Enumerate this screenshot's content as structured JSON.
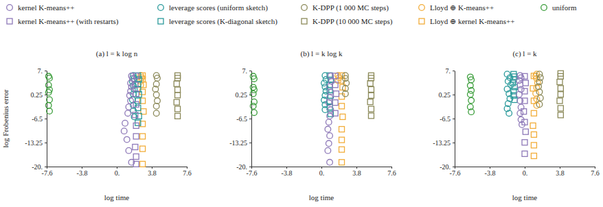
{
  "chart_data": [
    {
      "type": "scatter",
      "title": "(a) l = k log n",
      "x_label": "log time",
      "y_label": "log Frobenius error",
      "legend": "top",
      "xlim": [
        -7.6,
        7.6
      ],
      "ylim": [
        -20,
        7
      ],
      "xticks": [
        -7.6,
        -3.8,
        {
          "value": 0,
          "label": "0."
        },
        3.8,
        7.6
      ],
      "yticks": [
        {
          "value": 7,
          "label": "7."
        },
        0.25,
        -6.5,
        -13.25,
        {
          "value": -20,
          "label": "-20."
        }
      ],
      "series": [
        {
          "name": "kernel K-means++",
          "color": "#8e79b8",
          "marker": "circle",
          "x": [
            1.6,
            1.7,
            1.5,
            1.6,
            1.5,
            1.4,
            1.5,
            1.3,
            1.2,
            0.9,
            0.8,
            1.1,
            1.3,
            1.6
          ],
          "values": [
            5.5,
            4.8,
            3.5,
            2.4,
            1.2,
            0,
            -1.5,
            -3.2,
            -5,
            -7.8,
            -10,
            -12.4,
            -15.5,
            -18.8
          ]
        },
        {
          "name": "kernel K-means++ (with restarts)",
          "color": "#8e79b8",
          "marker": "square",
          "x": [
            2.1,
            2.0,
            2.1,
            2.1,
            2.0,
            2.1,
            2.1,
            2.0,
            2.1,
            2.1
          ],
          "values": [
            5.5,
            3,
            0.5,
            -2.5,
            -5.5,
            -8.5,
            -11.5,
            -14.5,
            -17.2,
            -19.3
          ]
        },
        {
          "name": "leverage scores (uniform sketch)",
          "color": "#2b9a9b",
          "marker": "circle",
          "x": [
            1.8,
            1.9,
            1.7,
            1.8,
            1.9,
            1.8,
            1.7,
            1.8,
            1.8,
            1.9
          ],
          "values": [
            5.6,
            4.8,
            3.9,
            2.8,
            1.7,
            0.4,
            -1.2,
            -2.8,
            -4.3,
            -6
          ]
        },
        {
          "name": "leverage scores (K-diagonal sketch)",
          "color": "#2b9a9b",
          "marker": "square",
          "x": [
            2.3,
            2.4,
            2.3,
            2.3,
            2.4,
            2.3,
            2.3,
            2.4,
            2.3
          ],
          "values": [
            5.6,
            4.5,
            3.2,
            1.8,
            0.3,
            -1.5,
            -3.5,
            -5.8,
            -7.7
          ]
        },
        {
          "name": "K-DPP (1 000 MC steps)",
          "color": "#8c8a5a",
          "marker": "circle",
          "x": [
            4.3,
            4.4,
            4.3,
            4.2,
            4.3,
            4.4,
            4.3,
            4.3
          ],
          "values": [
            5.6,
            4.9,
            3.2,
            1.8,
            0.2,
            -1.5,
            -3,
            -5
          ]
        },
        {
          "name": "K-DPP (10 000 MC steps)",
          "color": "#8c8a5a",
          "marker": "square",
          "x": [
            6.6,
            6.6,
            6.5,
            6.6,
            6.6,
            6.5,
            6.6,
            6.6
          ],
          "values": [
            5.6,
            4.9,
            3.3,
            1.6,
            0.1,
            -1.9,
            -3.8,
            -5.8
          ]
        },
        {
          "name": "Lloyd ⊕ K-means++",
          "color": "#f2ad3a",
          "marker": "circle",
          "x": [
            2.6,
            2.7,
            2.6,
            2.6
          ],
          "values": [
            5.6,
            5,
            4,
            3
          ]
        },
        {
          "name": "Lloyd ⊕ kernel K-means++",
          "color": "#f2ad3a",
          "marker": "square",
          "x": [
            2.8,
            2.8,
            2.9,
            2.8,
            2.8,
            2.9,
            2.8,
            2.8,
            2.8,
            2.8
          ],
          "values": [
            5.6,
            4.6,
            3,
            1,
            -1.5,
            -4.5,
            -8,
            -11.5,
            -15,
            -19.3
          ]
        },
        {
          "name": "uniform",
          "color": "#3c9e3c",
          "marker": "circle",
          "x": [
            -7.4,
            -7.3,
            -7.4,
            -7.3,
            -7.4,
            -7.3,
            -7.4,
            -7.3
          ],
          "values": [
            5.4,
            4.9,
            2.9,
            1.6,
            0.9,
            -1.2,
            -2.8,
            -4.4
          ]
        }
      ]
    },
    {
      "type": "scatter",
      "title": "(b) l = k log k",
      "x_label": "log time",
      "xlim": [
        -7.6,
        7.6
      ],
      "ylim": [
        -20,
        7
      ],
      "xticks": [
        -7.6,
        -3.8,
        {
          "value": 0,
          "label": "0."
        },
        3.8,
        7.6
      ],
      "yticks": [
        {
          "value": 7,
          "label": "7."
        },
        0.25,
        -6.5,
        -13.25,
        {
          "value": -20,
          "label": "-20."
        }
      ],
      "series": [
        {
          "color": "#8e79b8",
          "marker": "circle",
          "x": [
            1.0,
            1.1,
            0.9,
            1.0,
            0.9,
            0.8,
            1.0,
            0.9,
            0.8,
            0.7,
            0.9,
            0.8,
            0.7,
            0.9
          ],
          "values": [
            5.5,
            4,
            2.5,
            1,
            -0.5,
            -2,
            -4,
            -5.8,
            -7.5,
            -9.5,
            -11.3,
            -13.5,
            -15.5,
            -18.8
          ]
        },
        {
          "color": "#8e79b8",
          "marker": "square",
          "x": [
            1.5,
            1.5,
            1.6,
            1.5,
            1.5
          ],
          "values": [
            5.5,
            3,
            0.5,
            -2,
            -5
          ]
        },
        {
          "color": "#2b9a9b",
          "marker": "circle",
          "x": [
            0.4,
            0.5,
            0.3,
            0.4,
            0.5,
            0.4,
            0.3,
            0.4,
            0.4
          ],
          "values": [
            5.6,
            4.5,
            3.5,
            2.4,
            1.2,
            0,
            -1.3,
            -2.6,
            -4
          ]
        },
        {
          "color": "#2b9a9b",
          "marker": "square",
          "x": [
            0.9,
            1.0,
            0.9,
            0.9,
            1.0,
            0.9,
            0.9,
            1.0
          ],
          "values": [
            5.6,
            4.4,
            3,
            1.5,
            0,
            -1.6,
            -3.3,
            -5.2
          ]
        },
        {
          "color": "#8c8a5a",
          "marker": "circle",
          "x": [
            2.6,
            2.6,
            2.7,
            2.6,
            2.6
          ],
          "values": [
            5.6,
            4.8,
            3.5,
            2,
            0.5
          ]
        },
        {
          "color": "#8c8a5a",
          "marker": "square",
          "x": [
            5.4,
            5.4,
            5.3,
            5.4,
            5.4,
            5.3,
            5.4,
            5.4
          ],
          "values": [
            5.6,
            4.9,
            3.4,
            1.7,
            0,
            -1.8,
            -3.8,
            -5.7
          ]
        },
        {
          "color": "#f2ad3a",
          "marker": "circle",
          "x": [
            1.8,
            1.9,
            1.8
          ],
          "values": [
            5.6,
            5,
            4.2
          ]
        },
        {
          "color": "#f2ad3a",
          "marker": "square",
          "x": [
            2.2,
            2.2,
            2.3,
            2.2,
            2.2,
            2.3,
            2.2,
            2.2,
            2.2,
            2.2
          ],
          "values": [
            5.6,
            4.2,
            2.3,
            -0.3,
            -3,
            -6,
            -9.5,
            -12.5,
            -15.2,
            -18.8
          ]
        },
        {
          "color": "#3c9e3c",
          "marker": "circle",
          "x": [
            -7.4,
            -7.3,
            -7.4,
            -7.3,
            -7.4,
            -7.3,
            -7.4,
            -7.3
          ],
          "values": [
            5.4,
            4.7,
            2.3,
            1.6,
            0.5,
            -1.8,
            -3,
            -4.8
          ]
        }
      ]
    },
    {
      "type": "scatter",
      "title": "(c) l = k",
      "x_label": "log time",
      "xlim": [
        -7.6,
        7.6
      ],
      "ylim": [
        -20,
        7
      ],
      "xticks": [
        -7.6,
        -3.8,
        {
          "value": 0,
          "label": "0."
        },
        3.8,
        7.6
      ],
      "yticks": [
        {
          "value": 7,
          "label": "7."
        },
        0.25,
        -6.5,
        -13.25,
        {
          "value": -20,
          "label": "-20."
        }
      ],
      "series": [
        {
          "color": "#8e79b8",
          "marker": "circle",
          "x": [
            -0.5,
            -0.4,
            -0.6,
            -0.5,
            -0.4,
            -0.6,
            -0.5,
            -0.4,
            -0.5,
            -0.4,
            -0.3
          ],
          "values": [
            5.6,
            5,
            4.2,
            3,
            1.7,
            0.3,
            -1.5,
            -3.3,
            -5,
            -6.8,
            -8.2
          ]
        },
        {
          "color": "#8e79b8",
          "marker": "square",
          "x": [
            0,
            0.1,
            0,
            0,
            -0.1,
            0,
            0.1,
            0,
            0
          ],
          "values": [
            5.4,
            3.5,
            1.2,
            -1.5,
            -4.5,
            -7.5,
            -10.2,
            -13.2,
            -16.4
          ]
        },
        {
          "color": "#2b9a9b",
          "marker": "circle",
          "x": [
            -1.9,
            -1.6,
            -1.8,
            -1.5,
            -1.9,
            -1.7,
            -1.6,
            -1.8,
            -1.9,
            -1.7
          ],
          "values": [
            6,
            5,
            4,
            3,
            1.8,
            0.5,
            -0.9,
            -2.3,
            -3.7,
            -5
          ]
        },
        {
          "color": "#2b9a9b",
          "marker": "square",
          "x": [
            -1.2,
            -1.1,
            -1.2,
            -1.3,
            -1.1,
            -1.2,
            -1.2,
            -1.1
          ],
          "values": [
            6,
            5.3,
            4.5,
            3.5,
            2.4,
            1.2,
            0,
            -1.2
          ]
        },
        {
          "color": "#8c8a5a",
          "marker": "circle",
          "x": [
            1.6,
            1.7,
            1.6,
            1.5,
            1.6,
            1.7,
            1.6
          ],
          "values": [
            6,
            5,
            3.8,
            2.5,
            1,
            -0.7,
            -2.5
          ]
        },
        {
          "color": "#8c8a5a",
          "marker": "square",
          "x": [
            3.9,
            3.9,
            3.8,
            3.9,
            3.9,
            3.8,
            3.9,
            3.9
          ],
          "values": [
            6.2,
            5.4,
            3.8,
            2,
            0.3,
            -1.5,
            -3.6,
            -5.5
          ]
        },
        {
          "color": "#f2ad3a",
          "marker": "circle",
          "x": [
            1.3,
            1.2,
            1.3,
            1.4,
            1.3,
            1.2,
            1.3,
            1.3
          ],
          "values": [
            6,
            5.5,
            4.8,
            3.6,
            2.2,
            0.6,
            -1,
            -2.8
          ]
        },
        {
          "color": "#f2ad3a",
          "marker": "square",
          "x": [
            1.0,
            0.9,
            1.0,
            1.0,
            0.9,
            1.0,
            1.0,
            1.0
          ],
          "values": [
            5.5,
            2,
            -1.5,
            -5,
            -8.5,
            -11,
            -14,
            -17
          ]
        },
        {
          "color": "#3c9e3c",
          "marker": "circle",
          "x": [
            -5.9,
            -5.8,
            -5.9,
            -5.8,
            -5.9,
            -5.8,
            -5.9,
            -5.8
          ],
          "values": [
            5.2,
            4.4,
            2.8,
            1.4,
            0.3,
            -1.4,
            -3.2,
            -4.6
          ]
        }
      ]
    }
  ]
}
